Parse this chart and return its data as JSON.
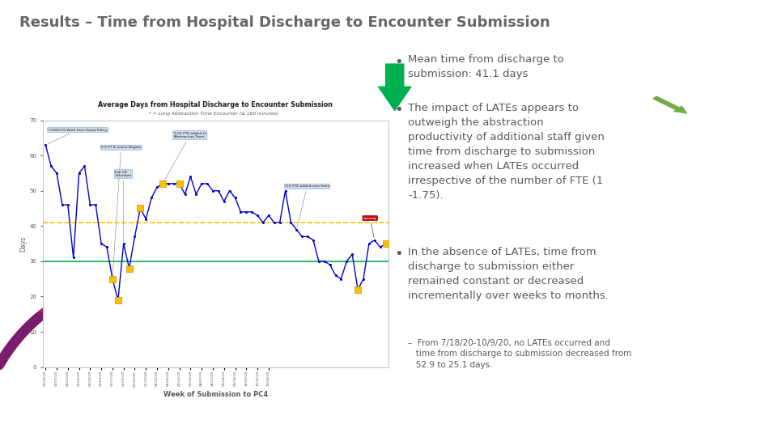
{
  "title": "Results – Time from Hospital Discharge to Encounter Submission",
  "title_color": "#666666",
  "background_color": "#ffffff",
  "chart_title": "Average Days from Hospital Discharge to Encounter Submission",
  "chart_subtitle": "* = Long Abstraction Time Encounter (≥ 160 minutes)",
  "xlabel": "Week of Submission to PC4",
  "ylabel": "Days",
  "ylim": [
    0,
    70
  ],
  "yticks": [
    0,
    10,
    20,
    30,
    40,
    50,
    60,
    70
  ],
  "goal_line": 30,
  "goal_color": "#00b050",
  "mean_line": 41,
  "mean_color": "#ffc000",
  "line_color": "#0000cd",
  "y_values": [
    63,
    57,
    55,
    46,
    46,
    31,
    55,
    57,
    46,
    46,
    35,
    34,
    25,
    19,
    35,
    28,
    37,
    45,
    42,
    48,
    51,
    52,
    52,
    52,
    52,
    49,
    54,
    49,
    52,
    52,
    50,
    50,
    47,
    50,
    48,
    44,
    44,
    44,
    43,
    41,
    43,
    41,
    41,
    50,
    41,
    39,
    37,
    37,
    36,
    30,
    30,
    29,
    26,
    25,
    30,
    32,
    22,
    25,
    35,
    36,
    34,
    35
  ],
  "late_x": [
    13,
    14,
    16,
    18,
    22,
    25,
    57,
    62
  ],
  "bullet1": "Mean time from discharge to\nsubmission: 41.1 days",
  "bullet2": "The impact of LATEs appears to\noutweigh the abstraction\nproductivity of additional staff given\ntime from discharge to submission\nincreased when LATEs occurred\nirrespective of the number of FTE (1\n-1.75).",
  "bullet3": "In the absence of LATEs, time from\ndischarge to submission either\nremained constant or decreased\nincrementally over weeks to months.",
  "subbullet": "–  From 7/18/20-10/9/20, no LATEs occurred and\n   time from discharge to submission decreased from\n   52.9 to 25.1 days.",
  "text_color": "#595959",
  "x_labels": [
    "01/24/20",
    "01/31/20",
    "02/07/20",
    "02/14/20",
    "02/21/20",
    "02/28/20",
    "03/06/20",
    "03/13/20",
    "03/20/20",
    "03/27/20",
    "04/03/20",
    "04/10/20",
    "04/17/20",
    "04/24/20",
    "05/01/20",
    "05/08/20",
    "05/15/20",
    "05/22/20",
    "05/29/20",
    "06/05/20",
    "06/12/20",
    "06/19/20",
    "06/26/20",
    "07/03/20",
    "07/10/20",
    "07/17/20",
    "07/24/20",
    "07/31/20",
    "08/07/20",
    "08/14/20",
    "08/21/20",
    "08/28/20",
    "09/04/20",
    "09/11/20",
    "09/18/20",
    "09/25/20",
    "10/02/20",
    "10/09/20",
    "10/16/20",
    "10/23/20",
    "10/30/20"
  ]
}
